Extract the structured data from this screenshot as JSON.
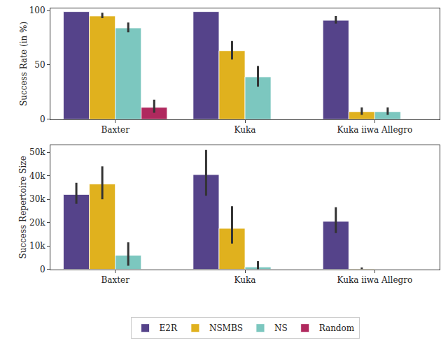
{
  "chart_data": [
    {
      "type": "bar",
      "y_label": "Success Rate (in %)",
      "categories": [
        "Baxter",
        "Kuka",
        "Kuka iiwa Allegro"
      ],
      "series": [
        {
          "name": "E2R",
          "color": "#55438a",
          "values": [
            99,
            99,
            91
          ],
          "error_low": [
            99,
            99,
            88
          ],
          "error_high": [
            99,
            99,
            95
          ]
        },
        {
          "name": "NSMBS",
          "color": "#e0b11e",
          "values": [
            95,
            63,
            7
          ],
          "error_low": [
            93,
            55,
            4
          ],
          "error_high": [
            98,
            72,
            11
          ]
        },
        {
          "name": "NS",
          "color": "#7cc7bf",
          "values": [
            84,
            39,
            7
          ],
          "error_low": [
            80,
            30,
            4
          ],
          "error_high": [
            89,
            49,
            11
          ]
        },
        {
          "name": "Random",
          "color": "#b0295e",
          "values": [
            11,
            null,
            null
          ],
          "error_low": [
            6,
            null,
            null
          ],
          "error_high": [
            18,
            null,
            null
          ]
        }
      ],
      "ylim": [
        0,
        102
      ],
      "yticks": [
        0,
        50,
        100
      ],
      "grid": false,
      "legend": "bottom"
    },
    {
      "type": "bar",
      "y_label": "Success Repertoire Size",
      "categories": [
        "Baxter",
        "Kuka",
        "Kuka iiwa Allegro"
      ],
      "series": [
        {
          "name": "E2R",
          "color": "#55438a",
          "values": [
            32000,
            40500,
            20500
          ],
          "error_low": [
            28000,
            31500,
            15500
          ],
          "error_high": [
            37000,
            51000,
            26500
          ]
        },
        {
          "name": "NSMBS",
          "color": "#e0b11e",
          "values": [
            36500,
            17500,
            200
          ],
          "error_low": [
            30000,
            11000,
            0
          ],
          "error_high": [
            44000,
            27000,
            800
          ]
        },
        {
          "name": "NS",
          "color": "#7cc7bf",
          "values": [
            6000,
            1000,
            null
          ],
          "error_low": [
            1500,
            0,
            null
          ],
          "error_high": [
            11500,
            3500,
            null
          ]
        },
        {
          "name": "Random",
          "color": "#b0295e",
          "values": [
            null,
            null,
            null
          ],
          "error_low": [
            null,
            null,
            null
          ],
          "error_high": [
            null,
            null,
            null
          ]
        }
      ],
      "ylim": [
        0,
        53000
      ],
      "yticks": [
        0,
        {
          "value": 10000,
          "label": "10k"
        },
        {
          "value": 20000,
          "label": "20k"
        },
        {
          "value": 30000,
          "label": "30k"
        },
        {
          "value": 40000,
          "label": "40k"
        },
        {
          "value": 50000,
          "label": "50k"
        }
      ],
      "grid": false
    }
  ]
}
